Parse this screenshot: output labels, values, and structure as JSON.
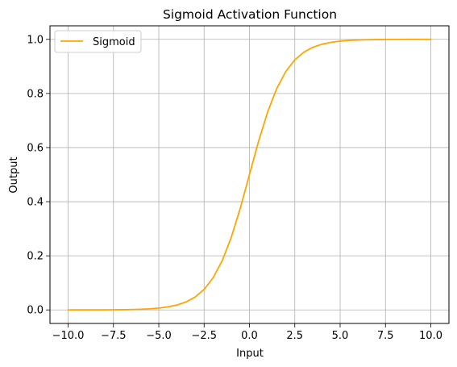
{
  "chart_data": {
    "type": "line",
    "title": "Sigmoid Activation Function",
    "xlabel": "Input",
    "ylabel": "Output",
    "xlim": [
      -11.0,
      11.0
    ],
    "ylim": [
      -0.05,
      1.05
    ],
    "x_ticks": [
      -10.0,
      -7.5,
      -5.0,
      -2.5,
      0.0,
      2.5,
      5.0,
      7.5,
      10.0
    ],
    "x_tick_labels": [
      "−10.0",
      "−7.5",
      "−5.0",
      "−2.5",
      "0.0",
      "2.5",
      "5.0",
      "7.5",
      "10.0"
    ],
    "y_ticks": [
      0.0,
      0.2,
      0.4,
      0.6,
      0.8,
      1.0
    ],
    "y_tick_labels": [
      "0.0",
      "0.2",
      "0.4",
      "0.6",
      "0.8",
      "1.0"
    ],
    "grid": true,
    "legend_position": "top-left",
    "series": [
      {
        "name": "Sigmoid",
        "color": "#ffa500",
        "x": [
          -10.0,
          -9.5,
          -9.0,
          -8.5,
          -8.0,
          -7.5,
          -7.0,
          -6.5,
          -6.0,
          -5.5,
          -5.0,
          -4.5,
          -4.0,
          -3.5,
          -3.0,
          -2.5,
          -2.0,
          -1.5,
          -1.0,
          -0.5,
          0.0,
          0.5,
          1.0,
          1.5,
          2.0,
          2.5,
          3.0,
          3.5,
          4.0,
          4.5,
          5.0,
          5.5,
          6.0,
          6.5,
          7.0,
          7.5,
          8.0,
          8.5,
          9.0,
          9.5,
          10.0
        ],
        "y": [
          0.0,
          0.0001,
          0.0001,
          0.0002,
          0.0003,
          0.0006,
          0.0009,
          0.0015,
          0.0025,
          0.0041,
          0.0067,
          0.011,
          0.018,
          0.0293,
          0.0474,
          0.0759,
          0.1192,
          0.1824,
          0.2689,
          0.3775,
          0.5,
          0.6225,
          0.7311,
          0.8176,
          0.8808,
          0.9241,
          0.9526,
          0.9707,
          0.982,
          0.989,
          0.9933,
          0.9959,
          0.9975,
          0.9985,
          0.9991,
          0.9994,
          0.9997,
          0.9998,
          0.9999,
          0.9999,
          1.0
        ]
      }
    ]
  }
}
